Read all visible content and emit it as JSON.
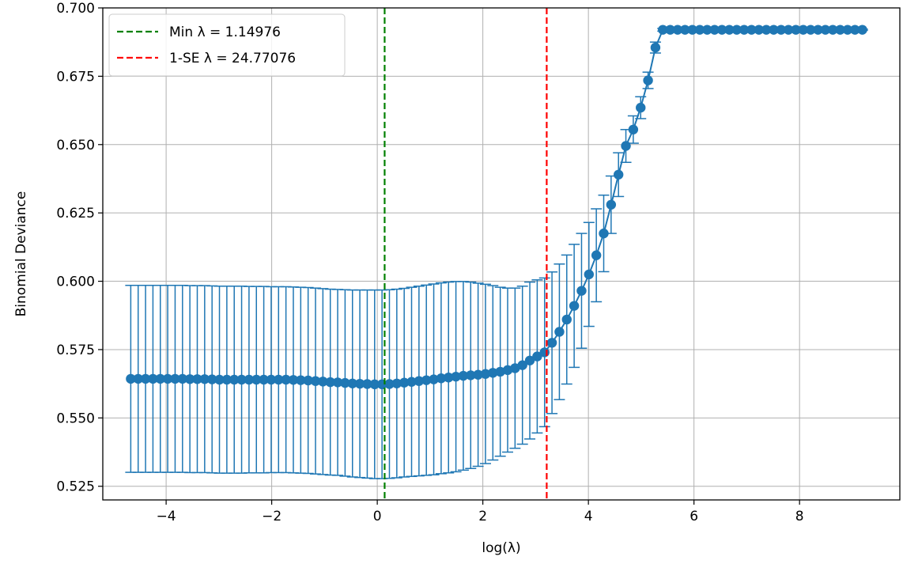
{
  "chart_data": {
    "type": "line",
    "title": "",
    "xlabel": "log(λ)",
    "ylabel": "Binomial Deviance",
    "xlim": [
      -5.2,
      9.9
    ],
    "ylim": [
      0.52,
      0.7
    ],
    "xticks": [
      -4,
      -2,
      0,
      2,
      4,
      6,
      8
    ],
    "xtick_labels": [
      "−4",
      "−2",
      "0",
      "2",
      "4",
      "6",
      "8"
    ],
    "yticks": [
      0.525,
      0.55,
      0.575,
      0.6,
      0.625,
      0.65,
      0.675,
      0.7
    ],
    "ytick_labels": [
      "0.525",
      "0.550",
      "0.575",
      "0.600",
      "0.625",
      "0.650",
      "0.675",
      "0.700"
    ],
    "grid": true,
    "legend_position": "top-left",
    "series_color": "#1f77b4",
    "cv_curve": {
      "log_lambda": [
        -4.67,
        -4.53,
        -4.39,
        -4.25,
        -4.11,
        -3.97,
        -3.83,
        -3.69,
        -3.55,
        -3.41,
        -3.27,
        -3.13,
        -2.99,
        -2.85,
        -2.71,
        -2.57,
        -2.43,
        -2.29,
        -2.15,
        -2.01,
        -1.87,
        -1.73,
        -1.59,
        -1.45,
        -1.31,
        -1.17,
        -1.03,
        -0.89,
        -0.75,
        -0.61,
        -0.47,
        -0.33,
        -0.19,
        -0.05,
        0.09,
        0.23,
        0.37,
        0.51,
        0.65,
        0.79,
        0.93,
        1.07,
        1.21,
        1.35,
        1.49,
        1.63,
        1.77,
        1.91,
        2.05,
        2.19,
        2.33,
        2.47,
        2.61,
        2.75,
        2.89,
        3.03,
        3.17,
        3.31,
        3.45,
        3.59,
        3.73,
        3.87,
        4.01,
        4.15,
        4.29,
        4.43,
        4.57,
        4.71,
        4.85,
        4.99,
        5.13,
        5.27,
        5.41,
        5.55,
        5.69,
        5.83,
        5.97,
        6.11,
        6.25,
        6.39,
        6.53,
        6.67,
        6.81,
        6.95,
        7.09,
        7.23,
        7.37,
        7.51,
        7.65,
        7.79,
        7.93,
        8.07,
        8.21,
        8.35,
        8.49,
        8.63,
        8.77,
        8.91,
        9.05,
        9.19
      ],
      "deviance": [
        0.5643,
        0.5643,
        0.5643,
        0.5643,
        0.5643,
        0.5643,
        0.5643,
        0.5643,
        0.5642,
        0.5642,
        0.5642,
        0.5641,
        0.564,
        0.564,
        0.564,
        0.564,
        0.564,
        0.564,
        0.564,
        0.564,
        0.564,
        0.564,
        0.5639,
        0.5638,
        0.5637,
        0.5635,
        0.5633,
        0.5631,
        0.563,
        0.5628,
        0.5626,
        0.5625,
        0.5624,
        0.5623,
        0.5623,
        0.5624,
        0.5626,
        0.5629,
        0.5632,
        0.5635,
        0.5638,
        0.5641,
        0.5645,
        0.5648,
        0.5651,
        0.5654,
        0.5656,
        0.5658,
        0.5661,
        0.5665,
        0.5669,
        0.5675,
        0.5682,
        0.5693,
        0.571,
        0.5725,
        0.574,
        0.5775,
        0.5815,
        0.586,
        0.591,
        0.5965,
        0.6025,
        0.6095,
        0.6175,
        0.628,
        0.639,
        0.6495,
        0.6555,
        0.6635,
        0.6735,
        0.6855,
        0.692,
        0.692,
        0.692,
        0.692,
        0.692,
        0.692,
        0.692,
        0.692,
        0.692,
        0.692,
        0.692,
        0.692,
        0.692,
        0.692,
        0.692,
        0.692,
        0.692,
        0.692,
        0.692,
        0.692,
        0.692,
        0.692,
        0.692,
        0.692,
        0.692,
        0.692,
        0.692,
        0.692
      ],
      "upper": [
        0.5985,
        0.5985,
        0.5985,
        0.5985,
        0.5985,
        0.5985,
        0.5985,
        0.5985,
        0.5984,
        0.5984,
        0.5984,
        0.5983,
        0.5982,
        0.5982,
        0.5982,
        0.5982,
        0.5981,
        0.5981,
        0.5981,
        0.598,
        0.598,
        0.598,
        0.5979,
        0.5978,
        0.5977,
        0.5975,
        0.5973,
        0.5971,
        0.597,
        0.5969,
        0.5968,
        0.5968,
        0.5968,
        0.5968,
        0.5968,
        0.5969,
        0.5971,
        0.5974,
        0.5978,
        0.5982,
        0.5986,
        0.599,
        0.5994,
        0.5997,
        0.5999,
        0.5999,
        0.5997,
        0.5993,
        0.5989,
        0.5984,
        0.5978,
        0.5975,
        0.5975,
        0.5982,
        0.5997,
        0.6005,
        0.6012,
        0.6034,
        0.6063,
        0.6096,
        0.6135,
        0.6175,
        0.6215,
        0.6265,
        0.6315,
        0.6385,
        0.647,
        0.6555,
        0.6605,
        0.6675,
        0.6765,
        0.6875,
        0.6925,
        0.6922,
        0.6922,
        0.6922,
        0.6922,
        0.6922,
        0.6922,
        0.6922,
        0.6922,
        0.6922,
        0.6922,
        0.6922,
        0.6922,
        0.6922,
        0.6922,
        0.6922,
        0.6922,
        0.6922,
        0.6922,
        0.6922,
        0.6922,
        0.6922,
        0.6922,
        0.6922,
        0.6922,
        0.6922,
        0.6922,
        0.6922
      ],
      "lower": [
        0.5301,
        0.5301,
        0.5301,
        0.5301,
        0.5301,
        0.5301,
        0.5301,
        0.5301,
        0.53,
        0.53,
        0.53,
        0.5299,
        0.5298,
        0.5298,
        0.5298,
        0.5298,
        0.5299,
        0.5299,
        0.5299,
        0.53,
        0.53,
        0.53,
        0.5299,
        0.5298,
        0.5297,
        0.5295,
        0.5293,
        0.5291,
        0.529,
        0.5287,
        0.5284,
        0.5282,
        0.528,
        0.5278,
        0.5278,
        0.5279,
        0.5281,
        0.5284,
        0.5286,
        0.5288,
        0.529,
        0.5292,
        0.5296,
        0.5299,
        0.5303,
        0.5309,
        0.5315,
        0.5323,
        0.5333,
        0.5346,
        0.536,
        0.5375,
        0.5389,
        0.5404,
        0.5423,
        0.5445,
        0.5468,
        0.5516,
        0.5567,
        0.5624,
        0.5685,
        0.5755,
        0.5835,
        0.5925,
        0.6035,
        0.6175,
        0.631,
        0.6435,
        0.6505,
        0.6595,
        0.6705,
        0.6835,
        0.6915,
        0.6918,
        0.6918,
        0.6918,
        0.6918,
        0.6918,
        0.6918,
        0.6918,
        0.6918,
        0.6918,
        0.6918,
        0.6918,
        0.6918,
        0.6918,
        0.6918,
        0.6918,
        0.6918,
        0.6918,
        0.6918,
        0.6918,
        0.6918,
        0.6918,
        0.6918,
        0.6918,
        0.6918,
        0.6918,
        0.6918,
        0.6918
      ]
    },
    "reference_lines": [
      {
        "label": "Min λ = 1.14976",
        "x": 0.1396,
        "color": "#008000",
        "style": "dashed"
      },
      {
        "label": "1-SE λ = 24.77076",
        "x": 3.21,
        "color": "#ff0000",
        "style": "dashed"
      }
    ]
  }
}
